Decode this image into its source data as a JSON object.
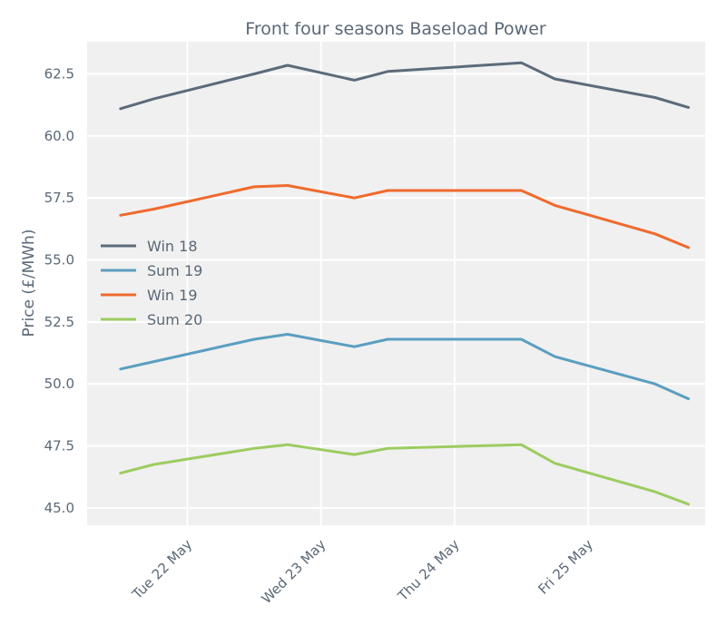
{
  "chart_data": {
    "type": "line",
    "title": "Front four seasons Baseload Power",
    "xlabel": "",
    "ylabel": "Price (£/MWh)",
    "x": [
      "2018-05-21 12:00",
      "2018-05-21 18:00",
      "2018-05-22 12:00",
      "2018-05-22 18:00",
      "2018-05-23 06:00",
      "2018-05-23 12:00",
      "2018-05-24 12:00",
      "2018-05-24 18:00",
      "2018-05-25 12:00",
      "2018-05-25 18:00"
    ],
    "xlim": [
      "2018-05-21 06:00",
      "2018-05-25 21:00"
    ],
    "xticks": [
      "Tue 22 May",
      "Wed 23 May",
      "Thu 24 May",
      "Fri 25 May"
    ],
    "ylim": [
      44.3,
      63.8
    ],
    "yticks": [
      "45.0",
      "47.5",
      "50.0",
      "52.5",
      "55.0",
      "57.5",
      "60.0",
      "62.5"
    ],
    "grid": true,
    "legend_position": "center-left",
    "series": [
      {
        "name": "Win 18",
        "color": "#5c6b7a",
        "values": [
          61.1,
          61.5,
          62.5,
          62.85,
          62.25,
          62.6,
          62.95,
          62.3,
          61.55,
          61.15
        ]
      },
      {
        "name": "Sum 19",
        "color": "#5b9ec0",
        "values": [
          50.6,
          50.9,
          51.8,
          52.0,
          51.5,
          51.8,
          51.8,
          51.1,
          50.0,
          49.4
        ]
      },
      {
        "name": "Win 19",
        "color": "#ef6a2e",
        "values": [
          56.8,
          57.05,
          57.95,
          58.0,
          57.5,
          57.8,
          57.8,
          57.2,
          56.05,
          55.5
        ]
      },
      {
        "name": "Sum 20",
        "color": "#9ccc60",
        "values": [
          46.4,
          46.75,
          47.4,
          47.55,
          47.15,
          47.4,
          47.55,
          46.8,
          45.65,
          45.15
        ]
      }
    ]
  }
}
